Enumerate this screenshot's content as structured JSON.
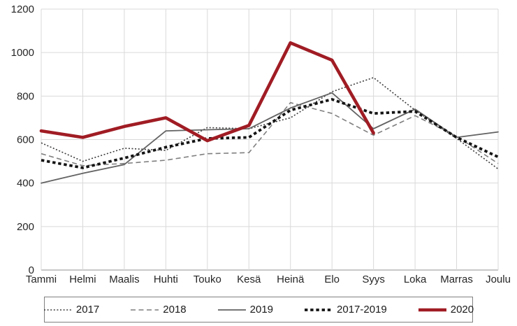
{
  "chart_data": {
    "type": "line",
    "categories": [
      "Tammi",
      "Helmi",
      "Maalis",
      "Huhti",
      "Touko",
      "Kesä",
      "Heinä",
      "Elo",
      "Syys",
      "Loka",
      "Marras",
      "Joulu"
    ],
    "series": [
      {
        "name": "2017",
        "color": "#3b3b3b",
        "line_style": "dotted",
        "stroke_width": 1.6,
        "dash": "2 2.6",
        "values": [
          585,
          500,
          560,
          550,
          655,
          650,
          700,
          820,
          885,
          735,
          605,
          465
        ]
      },
      {
        "name": "2018",
        "color": "#7f7f7f",
        "line_style": "dashed",
        "stroke_width": 1.6,
        "dash": "7 4.5",
        "values": [
          535,
          480,
          490,
          505,
          535,
          540,
          770,
          720,
          620,
          710,
          615,
          490
        ]
      },
      {
        "name": "2019",
        "color": "#636363",
        "line_style": "solid",
        "stroke_width": 1.8,
        "dash": "",
        "values": [
          400,
          445,
          485,
          640,
          645,
          650,
          745,
          815,
          650,
          740,
          610,
          635
        ]
      },
      {
        "name": "2017-2019",
        "color": "#141414",
        "line_style": "heavy-dotted",
        "stroke_width": 3.8,
        "dash": "4.4 3.8",
        "values": [
          505,
          470,
          515,
          565,
          605,
          610,
          735,
          785,
          720,
          730,
          610,
          520
        ]
      },
      {
        "name": "2020",
        "color": "#a01c24",
        "line_style": "heavy-solid",
        "stroke_width": 4.6,
        "dash": "",
        "values": [
          640,
          610,
          660,
          700,
          595,
          665,
          1045,
          965,
          630,
          null,
          null,
          null
        ]
      }
    ],
    "ylim": [
      0,
      1200
    ],
    "ytick_step": 200,
    "yticks": [
      "0",
      "200",
      "400",
      "600",
      "800",
      "1000",
      "1200"
    ],
    "xlabel": "",
    "ylabel": "",
    "grid": "both",
    "legend_position": "bottom"
  },
  "colors": {
    "background": "#ffffff",
    "gridline": "#d9d9d9",
    "axis_line": "#a6a6a6",
    "tick_text": "#262626",
    "legend_border": "#7f7f7f"
  }
}
